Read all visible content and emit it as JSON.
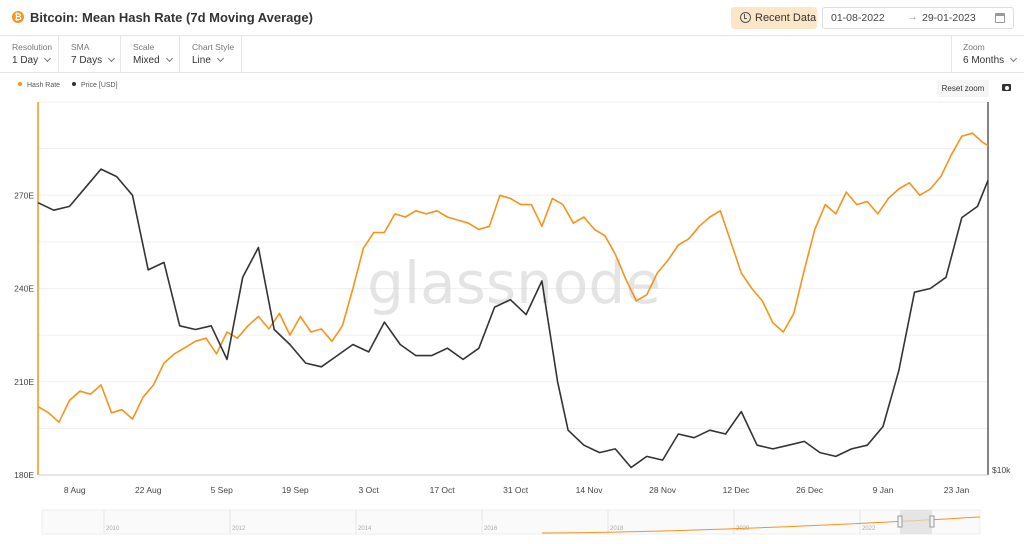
{
  "header": {
    "coin_symbol": "₿",
    "title": "Bitcoin: Mean Hash Rate (7d Moving Average)",
    "recent_data_label": "Recent Data",
    "date_from": "01-08-2022",
    "date_arrow": "→",
    "date_to": "29-01-2023"
  },
  "controls": {
    "resolution": {
      "label": "Resolution",
      "value": "1 Day"
    },
    "sma": {
      "label": "SMA",
      "value": "7 Days"
    },
    "scale": {
      "label": "Scale",
      "value": "Mixed"
    },
    "chart_style": {
      "label": "Chart Style",
      "value": "Line"
    },
    "zoom": {
      "label": "Zoom",
      "value": "6 Months"
    }
  },
  "toolbar": {
    "reset_zoom_label": "Reset zoom"
  },
  "colors": {
    "hash_rate": "#f7931a",
    "price": "#333333",
    "accent_bg": "#fbe7c8"
  },
  "chart_data": {
    "type": "line",
    "title": "Bitcoin: Mean Hash Rate (7d Moving Average)",
    "watermark": "glassnode",
    "legend_position": "top-left",
    "grid": true,
    "x_range": [
      "2022-08-01",
      "2023-01-29"
    ],
    "x_ticks": [
      "8 Aug",
      "22 Aug",
      "5 Sep",
      "19 Sep",
      "3 Oct",
      "17 Oct",
      "31 Oct",
      "14 Nov",
      "28 Nov",
      "12 Dec",
      "26 Dec",
      "9 Jan",
      "23 Jan"
    ],
    "y_left": {
      "ticks": [
        "180E",
        "210E",
        "240E",
        "270E"
      ],
      "min": 180,
      "max": 300,
      "unit": "E"
    },
    "y_right": {
      "ticks": [
        "$10k"
      ],
      "min": 16000,
      "max": 26000
    },
    "series": [
      {
        "name": "Hash Rate",
        "axis": "left",
        "color": "#f7931a",
        "x": [
          "2022-08-01",
          "2022-08-03",
          "2022-08-05",
          "2022-08-07",
          "2022-08-09",
          "2022-08-11",
          "2022-08-13",
          "2022-08-15",
          "2022-08-17",
          "2022-08-19",
          "2022-08-21",
          "2022-08-23",
          "2022-08-25",
          "2022-08-27",
          "2022-08-29",
          "2022-08-31",
          "2022-09-02",
          "2022-09-04",
          "2022-09-06",
          "2022-09-08",
          "2022-09-10",
          "2022-09-12",
          "2022-09-14",
          "2022-09-16",
          "2022-09-18",
          "2022-09-20",
          "2022-09-22",
          "2022-09-24",
          "2022-09-26",
          "2022-09-28",
          "2022-09-30",
          "2022-10-02",
          "2022-10-04",
          "2022-10-06",
          "2022-10-08",
          "2022-10-10",
          "2022-10-12",
          "2022-10-14",
          "2022-10-16",
          "2022-10-18",
          "2022-10-20",
          "2022-10-22",
          "2022-10-24",
          "2022-10-26",
          "2022-10-28",
          "2022-10-30",
          "2022-11-01",
          "2022-11-03",
          "2022-11-05",
          "2022-11-07",
          "2022-11-09",
          "2022-11-11",
          "2022-11-13",
          "2022-11-15",
          "2022-11-17",
          "2022-11-19",
          "2022-11-21",
          "2022-11-23",
          "2022-11-25",
          "2022-11-27",
          "2022-11-29",
          "2022-12-01",
          "2022-12-03",
          "2022-12-05",
          "2022-12-07",
          "2022-12-09",
          "2022-12-11",
          "2022-12-13",
          "2022-12-15",
          "2022-12-17",
          "2022-12-19",
          "2022-12-21",
          "2022-12-23",
          "2022-12-25",
          "2022-12-27",
          "2022-12-29",
          "2022-12-31",
          "2023-01-02",
          "2023-01-04",
          "2023-01-06",
          "2023-01-08",
          "2023-01-10",
          "2023-01-12",
          "2023-01-14",
          "2023-01-16",
          "2023-01-18",
          "2023-01-20",
          "2023-01-22",
          "2023-01-24",
          "2023-01-26",
          "2023-01-28",
          "2023-01-29"
        ],
        "values": [
          202,
          200,
          197,
          204,
          207,
          206,
          209,
          200,
          201,
          198,
          205,
          209,
          216,
          219,
          221,
          223,
          224,
          219,
          226,
          224,
          228,
          231,
          227,
          232,
          225,
          231,
          226,
          227,
          223,
          228,
          240,
          253,
          258,
          258,
          264,
          263,
          265,
          264,
          265,
          263,
          262,
          261,
          259,
          260,
          270,
          269,
          267,
          267,
          260,
          269,
          267,
          261,
          263,
          259,
          257,
          251,
          243,
          236,
          238,
          245,
          249,
          254,
          256,
          260,
          263,
          265,
          255,
          245,
          240,
          236,
          229,
          226,
          232,
          246,
          259,
          267,
          264,
          271,
          267,
          268,
          264,
          269,
          272,
          274,
          270,
          272,
          276,
          283,
          289,
          290,
          287,
          286
        ],
        "note": "values in EH/s"
      },
      {
        "name": "Price [USD]",
        "axis": "right",
        "color": "#333333",
        "x": [
          "2022-08-01",
          "2022-08-04",
          "2022-08-07",
          "2022-08-10",
          "2022-08-13",
          "2022-08-16",
          "2022-08-19",
          "2022-08-22",
          "2022-08-25",
          "2022-08-28",
          "2022-08-31",
          "2022-09-03",
          "2022-09-06",
          "2022-09-09",
          "2022-09-12",
          "2022-09-15",
          "2022-09-18",
          "2022-09-21",
          "2022-09-24",
          "2022-09-27",
          "2022-09-30",
          "2022-10-03",
          "2022-10-06",
          "2022-10-09",
          "2022-10-12",
          "2022-10-15",
          "2022-10-18",
          "2022-10-21",
          "2022-10-24",
          "2022-10-27",
          "2022-10-30",
          "2022-11-02",
          "2022-11-05",
          "2022-11-08",
          "2022-11-10",
          "2022-11-13",
          "2022-11-16",
          "2022-11-19",
          "2022-11-22",
          "2022-11-25",
          "2022-11-28",
          "2022-12-01",
          "2022-12-04",
          "2022-12-07",
          "2022-12-10",
          "2022-12-13",
          "2022-12-16",
          "2022-12-19",
          "2022-12-22",
          "2022-12-25",
          "2022-12-28",
          "2022-12-31",
          "2023-01-03",
          "2023-01-06",
          "2023-01-09",
          "2023-01-12",
          "2023-01-15",
          "2023-01-18",
          "2023-01-21",
          "2023-01-24",
          "2023-01-27",
          "2023-01-29"
        ],
        "values": [
          23300,
          23100,
          23200,
          23700,
          24200,
          24000,
          23500,
          21500,
          21700,
          20000,
          19900,
          20000,
          19100,
          21300,
          22100,
          19900,
          19500,
          19000,
          18900,
          19200,
          19500,
          19300,
          20100,
          19500,
          19200,
          19200,
          19400,
          19100,
          19400,
          20500,
          20700,
          20300,
          21200,
          18500,
          17200,
          16800,
          16600,
          16700,
          16200,
          16500,
          16400,
          17100,
          17000,
          17200,
          17100,
          17700,
          16800,
          16700,
          16800,
          16900,
          16600,
          16500,
          16700,
          16800,
          17300,
          18800,
          20900,
          21000,
          21300,
          22900,
          23200,
          23900
        ]
      }
    ],
    "navigator_years": [
      "2010",
      "2012",
      "2014",
      "2016",
      "2018",
      "2020",
      "2022"
    ]
  }
}
